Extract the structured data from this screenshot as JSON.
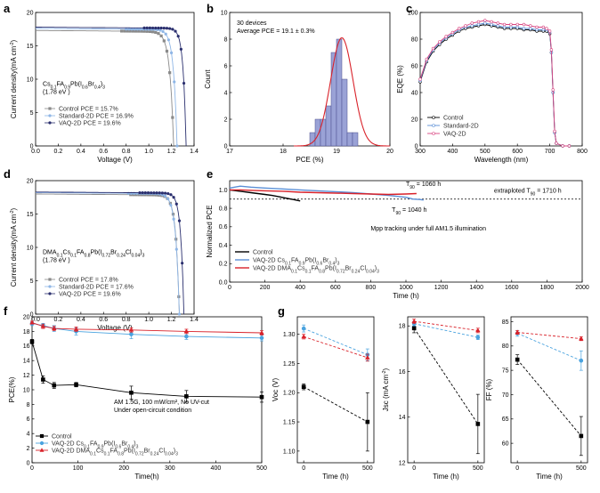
{
  "colors": {
    "control_dark": "#333333",
    "control_grey": "#8a8a8a",
    "standard": "#5b8fd6",
    "standard_light": "#8fb6e6",
    "vaq_navy": "#2a2f6e",
    "vaq_red": "#d9222a",
    "hist_fill": "#9aa2d6",
    "fit_red": "#d9222a",
    "eqe_vaq": "#d94580"
  },
  "panels": {
    "a": {
      "label": "a"
    },
    "b": {
      "label": "b"
    },
    "c": {
      "label": "c"
    },
    "d": {
      "label": "d"
    },
    "e": {
      "label": "e"
    },
    "f": {
      "label": "f"
    },
    "g": {
      "label": "g"
    }
  },
  "chart_data": [
    {
      "id": "a",
      "type": "line",
      "xlabel": "Voltage (V)",
      "ylabel": "Current density(mA cm⁻²)",
      "xlim": [
        0,
        1.4
      ],
      "ylim": [
        0,
        20
      ],
      "xticks": [
        0.0,
        0.2,
        0.4,
        0.6,
        0.8,
        1.0,
        1.2,
        1.4
      ],
      "yticks": [
        0,
        5,
        10,
        15,
        20
      ],
      "annotation": [
        "Cs0.1FA0.9Pb(I0.6Br0.4)3",
        "(1.78 eV )"
      ],
      "series": [
        {
          "name": "Control PCE = 15.7%",
          "color": "#8a8a8a",
          "marker": "square",
          "jsc": 17.3,
          "voc": 1.22,
          "n": 0.034,
          "vk": 0.76
        },
        {
          "name": "Standard-2D PCE = 16.9%",
          "color": "#8fb6e6",
          "marker": "circle",
          "jsc": 17.6,
          "voc": 1.25,
          "n": 0.031,
          "vk": 0.8
        },
        {
          "name": "VAQ-2D PCE = 19.6%",
          "color": "#2a2f6e",
          "marker": "circle",
          "jsc": 17.8,
          "voc": 1.33,
          "n": 0.026,
          "vk": 0.96
        }
      ]
    },
    {
      "id": "b",
      "type": "bar",
      "xlabel": "PCE (%)",
      "ylabel": "Count",
      "xlim": [
        17,
        20
      ],
      "ylim": [
        0,
        10
      ],
      "xticks": [
        17,
        18,
        19,
        20
      ],
      "yticks": [
        0,
        2,
        4,
        6,
        8,
        10
      ],
      "text": [
        "30 devices",
        "Average PCE = 19.1 ± 0.3%"
      ],
      "bins": [
        {
          "start": 18.5,
          "end": 18.6,
          "count": 1
        },
        {
          "start": 18.6,
          "end": 18.7,
          "count": 2
        },
        {
          "start": 18.7,
          "end": 18.8,
          "count": 2
        },
        {
          "start": 18.8,
          "end": 18.9,
          "count": 3
        },
        {
          "start": 18.9,
          "end": 19.0,
          "count": 7
        },
        {
          "start": 19.0,
          "end": 19.1,
          "count": 8
        },
        {
          "start": 19.1,
          "end": 19.2,
          "count": 5
        },
        {
          "start": 19.2,
          "end": 19.3,
          "count": 1
        },
        {
          "start": 19.3,
          "end": 19.4,
          "count": 1
        }
      ],
      "fit": {
        "mean": 19.1,
        "sigma": 0.21,
        "peak": 8.1
      }
    },
    {
      "id": "c",
      "type": "line",
      "xlabel": "Wavelength (nm)",
      "ylabel": "EQE (%)",
      "xlim": [
        300,
        800
      ],
      "ylim": [
        0,
        100
      ],
      "xticks": [
        300,
        400,
        500,
        600,
        700,
        800
      ],
      "yticks": [
        0,
        20,
        40,
        60,
        80,
        100
      ],
      "series": [
        {
          "name": "Control",
          "color": "#000000",
          "x": [
            300,
            320,
            340,
            360,
            380,
            400,
            420,
            440,
            460,
            480,
            500,
            520,
            540,
            560,
            580,
            600,
            620,
            640,
            660,
            680,
            690,
            700,
            705,
            710,
            715,
            720,
            740,
            760
          ],
          "y": [
            48,
            63,
            71,
            76,
            80,
            83,
            86,
            88,
            89,
            90,
            91,
            90,
            89,
            88,
            88,
            88,
            87,
            87,
            86,
            86,
            86,
            84,
            70,
            40,
            10,
            2,
            0,
            0
          ]
        },
        {
          "name": "Standard-2D",
          "color": "#5b8fd6",
          "x": [
            300,
            320,
            340,
            360,
            380,
            400,
            420,
            440,
            460,
            480,
            500,
            520,
            540,
            560,
            580,
            600,
            620,
            640,
            660,
            680,
            690,
            700,
            705,
            710,
            715,
            720,
            740,
            760
          ],
          "y": [
            49,
            64,
            72,
            77,
            81,
            84,
            87,
            89,
            90,
            91,
            92,
            91,
            90,
            89,
            89,
            89,
            88,
            88,
            87,
            87,
            87,
            85,
            70,
            40,
            10,
            2,
            0,
            0
          ]
        },
        {
          "name": "VAQ-2D",
          "color": "#d94580",
          "x": [
            300,
            320,
            340,
            360,
            380,
            400,
            420,
            440,
            460,
            480,
            500,
            520,
            540,
            560,
            580,
            600,
            620,
            640,
            660,
            680,
            690,
            700,
            705,
            710,
            715,
            720,
            740,
            760
          ],
          "y": [
            50,
            65,
            73,
            78,
            82,
            85,
            88,
            90,
            92,
            93,
            94,
            93,
            92,
            91,
            91,
            91,
            91,
            90,
            89,
            89,
            88,
            86,
            72,
            42,
            11,
            2,
            0,
            0
          ]
        }
      ]
    },
    {
      "id": "d",
      "type": "line",
      "xlabel": "Voltage (V)",
      "ylabel": "Current density(mA cm⁻²)",
      "xlim": [
        0,
        1.4
      ],
      "ylim": [
        0,
        20
      ],
      "xticks": [
        0.0,
        0.2,
        0.4,
        0.6,
        0.8,
        1.0,
        1.2,
        1.4
      ],
      "yticks": [
        0,
        5,
        10,
        15,
        20
      ],
      "annotation": [
        "DMA0.1Cs0.1FA0.8Pb(I0.72Br0.24Cl0.04)3",
        "(1.78 eV )"
      ],
      "series": [
        {
          "name": "Control PCE = 17.8%",
          "color": "#8a8a8a",
          "marker": "square",
          "jsc": 18.0,
          "voc": 1.27,
          "n": 0.03,
          "vk": 0.84
        },
        {
          "name": "Standard-2D PCE = 17.6%",
          "color": "#8fb6e6",
          "marker": "circle",
          "jsc": 18.2,
          "voc": 1.27,
          "n": 0.032,
          "vk": 0.82
        },
        {
          "name": "VAQ-2D PCE = 19.6%",
          "color": "#2a2f6e",
          "marker": "circle",
          "jsc": 18.3,
          "voc": 1.31,
          "n": 0.027,
          "vk": 0.92
        }
      ]
    },
    {
      "id": "e",
      "type": "line",
      "xlabel": "Time (h)",
      "ylabel": "Normalized PCE",
      "xlim": [
        0,
        2000
      ],
      "ylim": [
        0,
        1.1
      ],
      "xticks": [
        0,
        200,
        400,
        600,
        800,
        1000,
        1200,
        1400,
        1600,
        1800,
        2000
      ],
      "yticks": [
        0,
        0.2,
        0.4,
        0.6,
        0.8,
        1.0
      ],
      "annotations": {
        "t90_vaq": "T90 = 1060 h",
        "t90_std": "T90 = 1040 h",
        "extrapolated": "extraploted T90 = 1710 h",
        "condition": "Mpp tracking under full AM1.5 illumination"
      },
      "reference_line": 0.9,
      "series": [
        {
          "name": "Control",
          "color": "#000000",
          "x": [
            0,
            40,
            80,
            120,
            160,
            200,
            240,
            280,
            320,
            360,
            400
          ],
          "y": [
            1.0,
            0.99,
            0.98,
            0.97,
            0.96,
            0.95,
            0.94,
            0.925,
            0.91,
            0.895,
            0.88
          ]
        },
        {
          "name": "VAQ-2D Cs0.1FA0.9Pb(I0.6Br0.4)3",
          "color": "#5b8fd6",
          "x": [
            0,
            60,
            120,
            200,
            300,
            400,
            500,
            600,
            700,
            800,
            900,
            1000,
            1040,
            1080,
            1100
          ],
          "y": [
            1.02,
            1.04,
            1.03,
            1.02,
            1.01,
            1.0,
            0.99,
            0.98,
            0.97,
            0.955,
            0.94,
            0.92,
            0.9,
            0.895,
            0.89
          ]
        },
        {
          "name": "VAQ-2D DMA0.1Cs0.1FA0.8Pb(I0.72Br0.24Cl0.04)3",
          "color": "#d9222a",
          "x": [
            0,
            60,
            120,
            200,
            300,
            400,
            500,
            600,
            700,
            800,
            900,
            1000,
            1060
          ],
          "y": [
            1.0,
            1.0,
            0.995,
            0.99,
            0.985,
            0.975,
            0.97,
            0.965,
            0.96,
            0.955,
            0.95,
            0.955,
            0.96
          ]
        }
      ]
    },
    {
      "id": "f",
      "type": "line",
      "xlabel": "Time(h)",
      "ylabel": "PCE(%)",
      "xlim": [
        0,
        500
      ],
      "ylim": [
        0,
        20
      ],
      "xticks": [
        0,
        100,
        200,
        300,
        400,
        500
      ],
      "yticks": [
        0,
        2,
        4,
        6,
        8,
        10,
        12,
        14,
        16,
        18,
        20
      ],
      "text": [
        "AM 1.5G, 100 mW/cm², No UV-cut",
        "Under open-circuit condition"
      ],
      "series": [
        {
          "name": "Control",
          "color": "#000000",
          "marker": "square",
          "x": [
            0,
            24,
            48,
            96,
            216,
            336,
            500
          ],
          "y": [
            16.6,
            11.4,
            10.6,
            10.7,
            9.6,
            9.1,
            9.0
          ],
          "err": [
            0.3,
            0.5,
            0.4,
            0.3,
            0.9,
            0.8,
            0.7
          ]
        },
        {
          "name": "VAQ-2D Cs0.1FA0.9Pb(I0.6Br0.4)3",
          "color": "#4aa3df",
          "marker": "circle",
          "x": [
            0,
            24,
            48,
            96,
            216,
            336,
            500
          ],
          "y": [
            19.1,
            18.8,
            18.4,
            18.0,
            17.6,
            17.3,
            17.1
          ],
          "err": [
            0.3,
            0.3,
            0.4,
            0.5,
            0.6,
            0.4,
            0.4
          ]
        },
        {
          "name": "VAQ-2D DMA0.1Cs0.1FA0.8Pb(I0.72Br0.24Cl0.04)3",
          "color": "#d9222a",
          "marker": "triangle",
          "x": [
            0,
            24,
            48,
            96,
            216,
            336,
            500
          ],
          "y": [
            19.2,
            18.7,
            18.4,
            18.3,
            18.2,
            18.0,
            17.8
          ],
          "err": [
            0.2,
            0.3,
            0.3,
            0.3,
            0.3,
            0.3,
            0.3
          ]
        }
      ]
    },
    {
      "id": "g1",
      "type": "line",
      "xlabel": "Time (h)",
      "ylabel": "Voc (V)",
      "xlim": [
        -50,
        550
      ],
      "ylim": [
        1.08,
        1.33
      ],
      "xticks": [
        0,
        500
      ],
      "yticks": [
        1.1,
        1.15,
        1.2,
        1.25,
        1.3
      ],
      "series": [
        {
          "color": "#000000",
          "marker": "square",
          "x": [
            0,
            500
          ],
          "y": [
            1.21,
            1.15
          ],
          "err": [
            0.005,
            0.05
          ]
        },
        {
          "color": "#4aa3df",
          "marker": "circle",
          "x": [
            0,
            500
          ],
          "y": [
            1.31,
            1.265
          ],
          "err": [
            0.006,
            0.01
          ]
        },
        {
          "color": "#d9222a",
          "marker": "triangle",
          "x": [
            0,
            500
          ],
          "y": [
            1.296,
            1.26
          ],
          "err": [
            0.004,
            0.006
          ]
        }
      ]
    },
    {
      "id": "g2",
      "type": "line",
      "xlabel": "Time (h)",
      "ylabel": "Jsc (mA cm⁻²)",
      "xlim": [
        -50,
        550
      ],
      "ylim": [
        12.0,
        18.4
      ],
      "xticks": [
        0,
        500
      ],
      "yticks": [
        12,
        14,
        16,
        18
      ],
      "series": [
        {
          "color": "#000000",
          "marker": "square",
          "x": [
            0,
            500
          ],
          "y": [
            17.9,
            13.7
          ],
          "err": [
            0.2,
            1.3
          ]
        },
        {
          "color": "#4aa3df",
          "marker": "circle",
          "x": [
            0,
            500
          ],
          "y": [
            18.1,
            17.5
          ],
          "err": [
            0.1,
            0.1
          ]
        },
        {
          "color": "#d9222a",
          "marker": "triangle",
          "x": [
            0,
            500
          ],
          "y": [
            18.2,
            17.8
          ],
          "err": [
            0.1,
            0.1
          ]
        }
      ]
    },
    {
      "id": "g3",
      "type": "line",
      "xlabel": "Time (h)",
      "ylabel": "FF (%)",
      "xlim": [
        -50,
        550
      ],
      "ylim": [
        56,
        86
      ],
      "xticks": [
        0,
        500
      ],
      "yticks": [
        60,
        65,
        70,
        75,
        80,
        85
      ],
      "series": [
        {
          "color": "#000000",
          "marker": "square",
          "x": [
            0,
            500
          ],
          "y": [
            77.2,
            61.5
          ],
          "err": [
            1.0,
            4.0
          ]
        },
        {
          "color": "#4aa3df",
          "marker": "circle",
          "x": [
            0,
            500
          ],
          "y": [
            82.6,
            77.0
          ],
          "err": [
            0.6,
            2.0
          ]
        },
        {
          "color": "#d9222a",
          "marker": "triangle",
          "x": [
            0,
            500
          ],
          "y": [
            82.8,
            81.5
          ],
          "err": [
            0.4,
            0.4
          ]
        }
      ]
    }
  ]
}
